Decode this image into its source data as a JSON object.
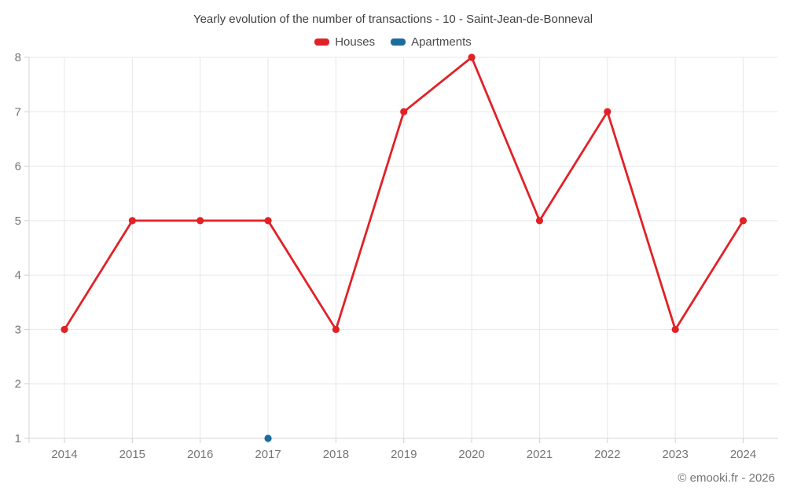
{
  "title": "Yearly evolution of the number of transactions - 10 - Saint-Jean-de-Bonneval",
  "legend": [
    {
      "label": "Houses",
      "color": "#e02227"
    },
    {
      "label": "Apartments",
      "color": "#1a6d9e"
    }
  ],
  "footer": "© emooki.fr - 2026",
  "chart_data": {
    "type": "line",
    "title": "Yearly evolution of the number of transactions - 10 - Saint-Jean-de-Bonneval",
    "x": [
      2014,
      2015,
      2016,
      2017,
      2018,
      2019,
      2020,
      2021,
      2022,
      2023,
      2024
    ],
    "series": [
      {
        "name": "Houses",
        "color": "#e02227",
        "values": [
          3,
          5,
          5,
          5,
          3,
          7,
          8,
          5,
          7,
          3,
          5
        ]
      },
      {
        "name": "Apartments",
        "color": "#1a6d9e",
        "values": [
          null,
          null,
          null,
          1,
          null,
          null,
          null,
          null,
          null,
          null,
          null
        ]
      }
    ],
    "ylim": [
      1,
      8
    ],
    "yticks": [
      1,
      2,
      3,
      4,
      5,
      6,
      7,
      8
    ],
    "grid": true,
    "legend_position": "top"
  }
}
